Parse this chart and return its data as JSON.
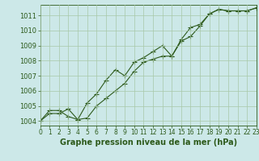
{
  "line1_x": [
    0,
    1,
    2,
    3,
    4,
    5,
    6,
    7,
    8,
    9,
    10,
    11,
    12,
    13,
    14,
    15,
    16,
    17,
    18,
    19,
    20,
    21,
    22,
    23
  ],
  "line1_y": [
    1004.0,
    1004.7,
    1004.7,
    1004.3,
    1004.1,
    1004.2,
    1005.0,
    1005.5,
    1006.0,
    1006.5,
    1007.3,
    1007.9,
    1008.1,
    1008.3,
    1008.3,
    1009.3,
    1009.6,
    1010.3,
    1011.1,
    1011.4,
    1011.3,
    1011.3,
    1011.3,
    1011.5
  ],
  "line2_x": [
    0,
    1,
    2,
    3,
    4,
    5,
    6,
    7,
    8,
    9,
    10,
    11,
    12,
    13,
    14,
    15,
    16,
    17,
    18,
    19,
    20,
    21,
    22,
    23
  ],
  "line2_y": [
    1004.0,
    1004.5,
    1004.5,
    1004.8,
    1004.1,
    1005.2,
    1005.8,
    1006.7,
    1007.4,
    1007.0,
    1007.9,
    1008.2,
    1008.6,
    1009.0,
    1008.3,
    1009.4,
    1010.2,
    1010.4,
    1011.1,
    1011.4,
    1011.3,
    1011.3,
    1011.3,
    1011.5
  ],
  "xlim": [
    0,
    23
  ],
  "ylim": [
    1003.7,
    1011.7
  ],
  "yticks": [
    1004,
    1005,
    1006,
    1007,
    1008,
    1009,
    1010,
    1011
  ],
  "xticks": [
    0,
    1,
    2,
    3,
    4,
    5,
    6,
    7,
    8,
    9,
    10,
    11,
    12,
    13,
    14,
    15,
    16,
    17,
    18,
    19,
    20,
    21,
    22,
    23
  ],
  "xlabel": "Graphe pression niveau de la mer (hPa)",
  "line_color": "#2d5a1b",
  "grid_color": "#a8c8a8",
  "bg_color": "#cce8e8",
  "marker": "+",
  "marker_size": 4,
  "line_width": 0.8,
  "xlabel_fontsize": 7,
  "ytick_fontsize": 6,
  "xtick_fontsize": 5.5
}
